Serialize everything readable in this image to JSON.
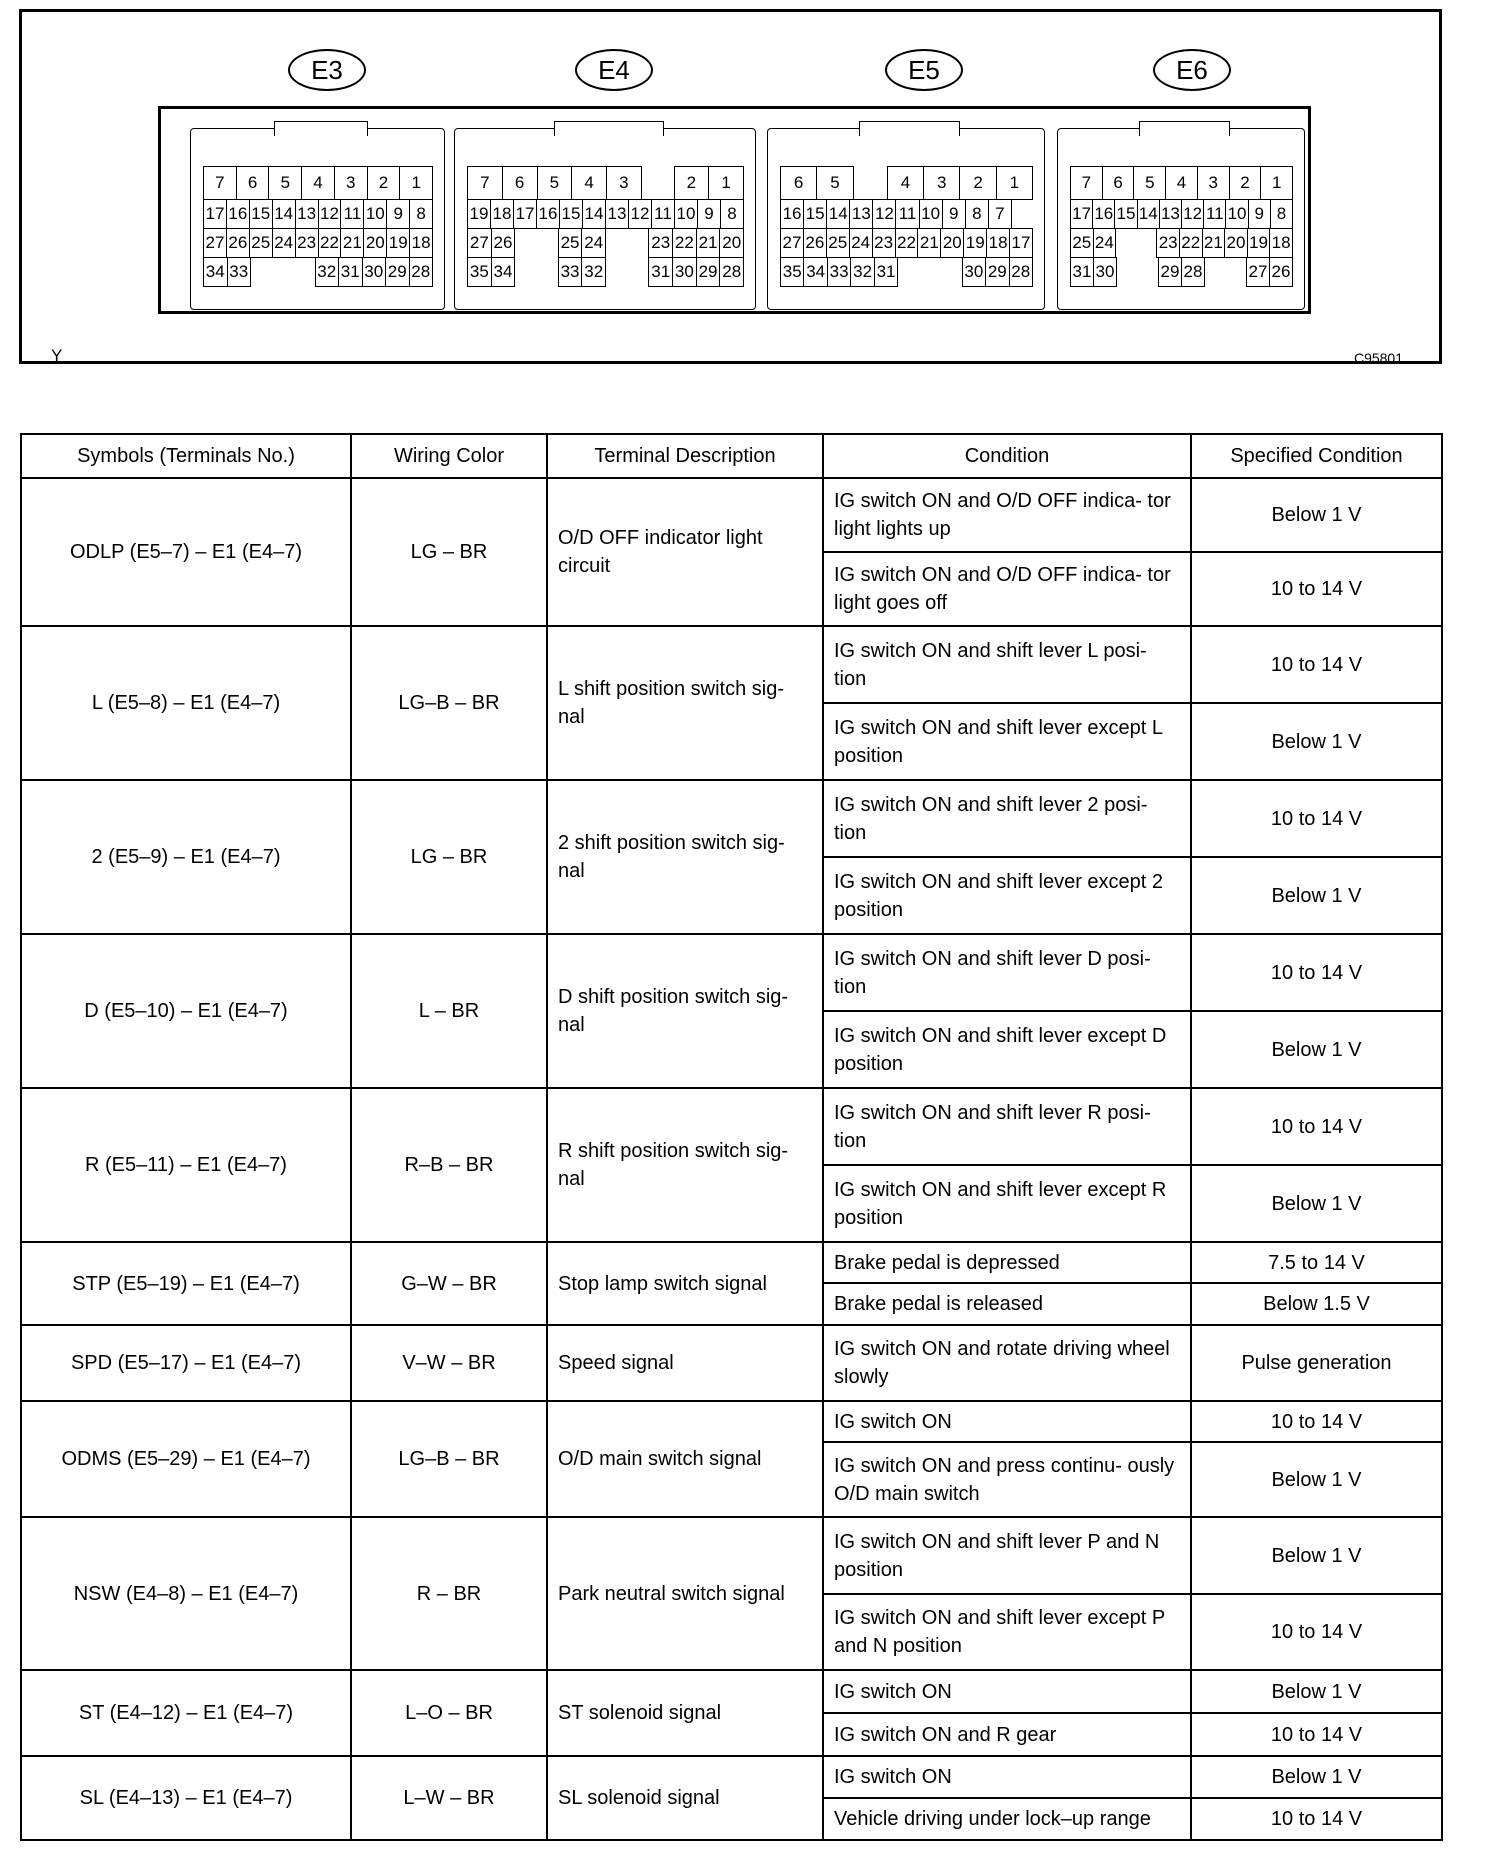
{
  "figure": {
    "code": "C95801",
    "corner_mark": "Y"
  },
  "connectors": [
    {
      "label": "E3",
      "rows": [
        [
          "7",
          "6",
          "5",
          "4",
          "3",
          "2",
          "1"
        ],
        [
          "17",
          "16",
          "15",
          "14",
          "13",
          "12",
          "11",
          "10",
          "9",
          "8"
        ],
        [
          "27",
          "26",
          "25",
          "24",
          "23",
          "22",
          "21",
          "20",
          "19",
          "18"
        ],
        [
          "34",
          "33",
          null,
          null,
          null,
          "32",
          "31",
          "30",
          "29",
          "28"
        ]
      ]
    },
    {
      "label": "E4",
      "rows": [
        [
          "7",
          "6",
          "5",
          "4",
          "3",
          null,
          "2",
          "1"
        ],
        [
          "19",
          "18",
          "17",
          "16",
          "15",
          "14",
          "13",
          "12",
          "11",
          "10",
          "9",
          "8"
        ],
        [
          "27",
          "26",
          null,
          null,
          "25",
          "24",
          null,
          null,
          "23",
          "22",
          "21",
          "20"
        ],
        [
          "35",
          "34",
          null,
          null,
          "33",
          "32",
          null,
          null,
          "31",
          "30",
          "29",
          "28"
        ]
      ]
    },
    {
      "label": "E5",
      "rows": [
        [
          "6",
          "5",
          null,
          "4",
          "3",
          "2",
          "1"
        ],
        [
          "16",
          "15",
          "14",
          "13",
          "12",
          "11",
          "10",
          "9",
          "8",
          "7",
          null
        ],
        [
          "27",
          "26",
          "25",
          "24",
          "23",
          "22",
          "21",
          "20",
          "19",
          "18",
          "17"
        ],
        [
          "35",
          "34",
          "33",
          "32",
          "31",
          null,
          null,
          null,
          "30",
          "29",
          "28"
        ]
      ]
    },
    {
      "label": "E6",
      "rows": [
        [
          "7",
          "6",
          "5",
          "4",
          "3",
          "2",
          "1"
        ],
        [
          "17",
          "16",
          "15",
          "14",
          "13",
          "12",
          "11",
          "10",
          "9",
          "8"
        ],
        [
          "25",
          "24",
          null,
          null,
          "23",
          "22",
          "21",
          "20",
          "19",
          "18"
        ],
        [
          "31",
          "30",
          null,
          null,
          "29",
          "28",
          null,
          null,
          "27",
          "26"
        ]
      ]
    }
  ],
  "table": {
    "headers": [
      "Symbols (Terminals No.)",
      "Wiring Color",
      "Terminal Description",
      "Condition",
      "Specified Condition"
    ],
    "rows": [
      {
        "symbol": "ODLP (E5–7) – E1 (E4–7)",
        "color": "LG – BR",
        "desc": "O/D OFF indicator light circuit",
        "conds": [
          [
            "IG switch ON and O/D OFF indica- tor light lights up",
            "Below 1 V"
          ],
          [
            "IG switch ON and O/D OFF indica- tor light goes off",
            "10 to 14 V"
          ]
        ]
      },
      {
        "symbol": "L (E5–8) – E1 (E4–7)",
        "color": "LG–B – BR",
        "desc": "L shift position switch sig- nal",
        "conds": [
          [
            "IG switch ON and shift lever L posi- tion",
            "10 to 14 V"
          ],
          [
            "IG switch ON and shift lever except L position",
            "Below 1 V"
          ]
        ]
      },
      {
        "symbol": "2 (E5–9) – E1 (E4–7)",
        "color": "LG – BR",
        "desc": "2 shift position switch sig- nal",
        "conds": [
          [
            "IG switch ON and shift lever 2 posi- tion",
            "10 to 14 V"
          ],
          [
            "IG switch ON and shift lever except 2 position",
            "Below 1 V"
          ]
        ]
      },
      {
        "symbol": "D (E5–10) – E1 (E4–7)",
        "color": "L – BR",
        "desc": "D shift position switch sig- nal",
        "conds": [
          [
            "IG switch ON and shift lever D posi- tion",
            "10 to 14 V"
          ],
          [
            "IG switch ON and shift lever except D position",
            "Below 1 V"
          ]
        ]
      },
      {
        "symbol": "R (E5–11) – E1 (E4–7)",
        "color": "R–B – BR",
        "desc": "R shift position switch sig- nal",
        "conds": [
          [
            "IG switch ON and shift lever R posi- tion",
            "10 to 14 V"
          ],
          [
            "IG switch ON and shift lever except R position",
            "Below 1 V"
          ]
        ]
      },
      {
        "symbol": "STP (E5–19) – E1 (E4–7)",
        "color": "G–W – BR",
        "desc": "Stop lamp switch signal",
        "conds": [
          [
            "Brake pedal is depressed",
            "7.5 to 14 V"
          ],
          [
            "Brake pedal is released",
            "Below 1.5 V"
          ]
        ]
      },
      {
        "symbol": "SPD (E5–17) – E1 (E4–7)",
        "color": "V–W – BR",
        "desc": "Speed signal",
        "conds": [
          [
            "IG switch ON and rotate driving wheel slowly",
            "Pulse generation"
          ]
        ]
      },
      {
        "symbol": "ODMS (E5–29) – E1 (E4–7)",
        "color": "LG–B – BR",
        "desc": "O/D main switch signal",
        "conds": [
          [
            "IG switch ON",
            "10 to 14 V"
          ],
          [
            "IG switch ON and press continu- ously O/D main switch",
            "Below 1 V"
          ]
        ]
      },
      {
        "symbol": "NSW (E4–8) – E1 (E4–7)",
        "color": "R – BR",
        "desc": "Park neutral switch signal",
        "conds": [
          [
            "IG switch ON and shift lever P and N position",
            "Below 1 V"
          ],
          [
            "IG switch ON and shift lever except P and N position",
            "10 to 14 V"
          ]
        ]
      },
      {
        "symbol": "ST (E4–12) – E1 (E4–7)",
        "color": "L–O – BR",
        "desc": "ST solenoid signal",
        "conds": [
          [
            "IG switch ON",
            "Below 1 V"
          ],
          [
            "IG switch ON and R gear",
            "10 to 14 V"
          ]
        ]
      },
      {
        "symbol": "SL (E4–13) – E1 (E4–7)",
        "color": "L–W – BR",
        "desc": "SL solenoid signal",
        "conds": [
          [
            "IG switch ON",
            "Below 1 V"
          ],
          [
            "Vehicle driving under lock–up range",
            "10 to 14 V"
          ]
        ]
      }
    ]
  }
}
